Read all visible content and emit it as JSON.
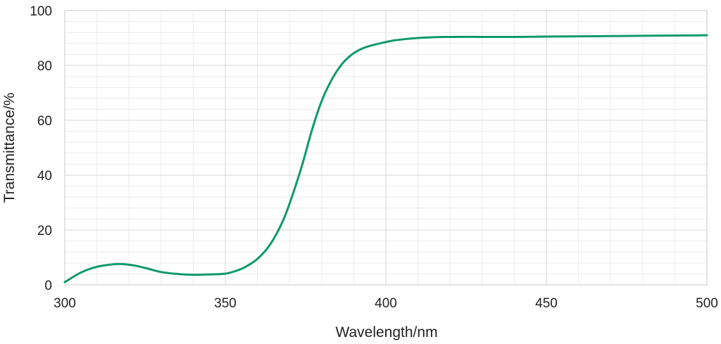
{
  "chart_data": {
    "type": "line",
    "title": "",
    "xlabel": "Wavelength/nm",
    "ylabel": "Transmittance/%",
    "xlim": [
      300,
      500
    ],
    "ylim": [
      0,
      100
    ],
    "x_ticks": [
      300,
      350,
      400,
      450,
      500
    ],
    "y_ticks": [
      0,
      20,
      40,
      60,
      80,
      100
    ],
    "x_tick_labels": [
      "300",
      "350",
      "400",
      "450",
      "500"
    ],
    "y_tick_labels": [
      "0",
      "20",
      "40",
      "60",
      "80",
      "100"
    ],
    "grid": true,
    "x_minor_step": 10,
    "y_minor_step": 4,
    "legend": "none",
    "series": [
      {
        "color": "#0e9a6a",
        "x": [
          300,
          305,
          310,
          315,
          318,
          322,
          326,
          330,
          335,
          340,
          345,
          350,
          353,
          356,
          360,
          364,
          368,
          371,
          374,
          377,
          380,
          383,
          386,
          389,
          392,
          395,
          398,
          402,
          406,
          410,
          415,
          420,
          430,
          440,
          450,
          460,
          470,
          480,
          490,
          500
        ],
        "y": [
          1.0,
          4.5,
          6.6,
          7.5,
          7.6,
          7.0,
          5.9,
          4.7,
          4.0,
          3.7,
          3.8,
          4.1,
          5.0,
          6.4,
          9.5,
          14.8,
          23.5,
          33.0,
          44.0,
          56.5,
          67.0,
          74.5,
          80.0,
          83.6,
          85.8,
          87.1,
          88.0,
          89.0,
          89.6,
          90.0,
          90.3,
          90.4,
          90.4,
          90.4,
          90.5,
          90.6,
          90.7,
          90.8,
          90.9,
          91.0
        ]
      }
    ]
  }
}
